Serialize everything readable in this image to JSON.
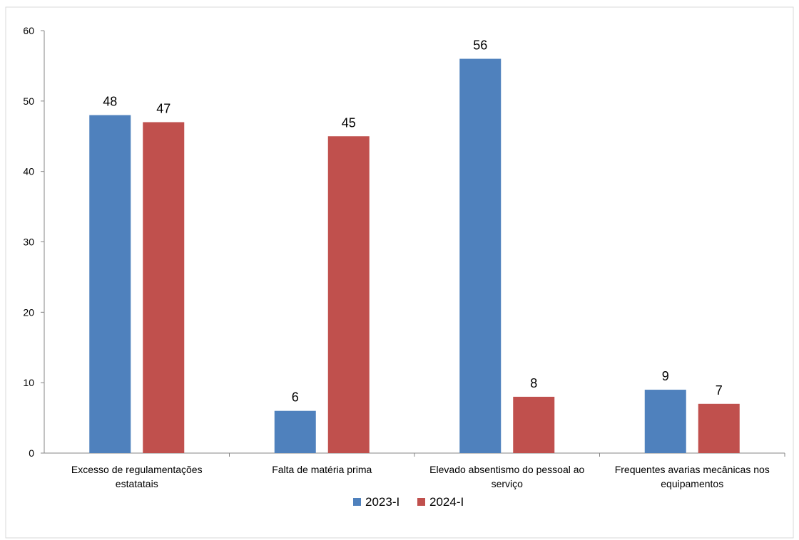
{
  "chart_data": {
    "type": "bar",
    "title": "",
    "xlabel": "",
    "ylabel": "",
    "categories": [
      [
        "Excesso de regulamentações",
        "estatatais"
      ],
      [
        "Falta de matéria prima"
      ],
      [
        "Elevado absentismo do pessoal ao",
        "serviço"
      ],
      [
        "Frequentes avarias mecânicas nos",
        "equipamentos"
      ]
    ],
    "series": [
      {
        "name": "2023-I",
        "color": "#4F81BD",
        "values": [
          48,
          6,
          56,
          9
        ]
      },
      {
        "name": "2024-I",
        "color": "#C0504D",
        "values": [
          47,
          45,
          8,
          7
        ]
      }
    ],
    "ylim": [
      0,
      60
    ],
    "yticks": [
      0,
      10,
      20,
      30,
      40,
      50,
      60
    ],
    "grid": false,
    "legend_position": "bottom",
    "data_labels": true
  }
}
